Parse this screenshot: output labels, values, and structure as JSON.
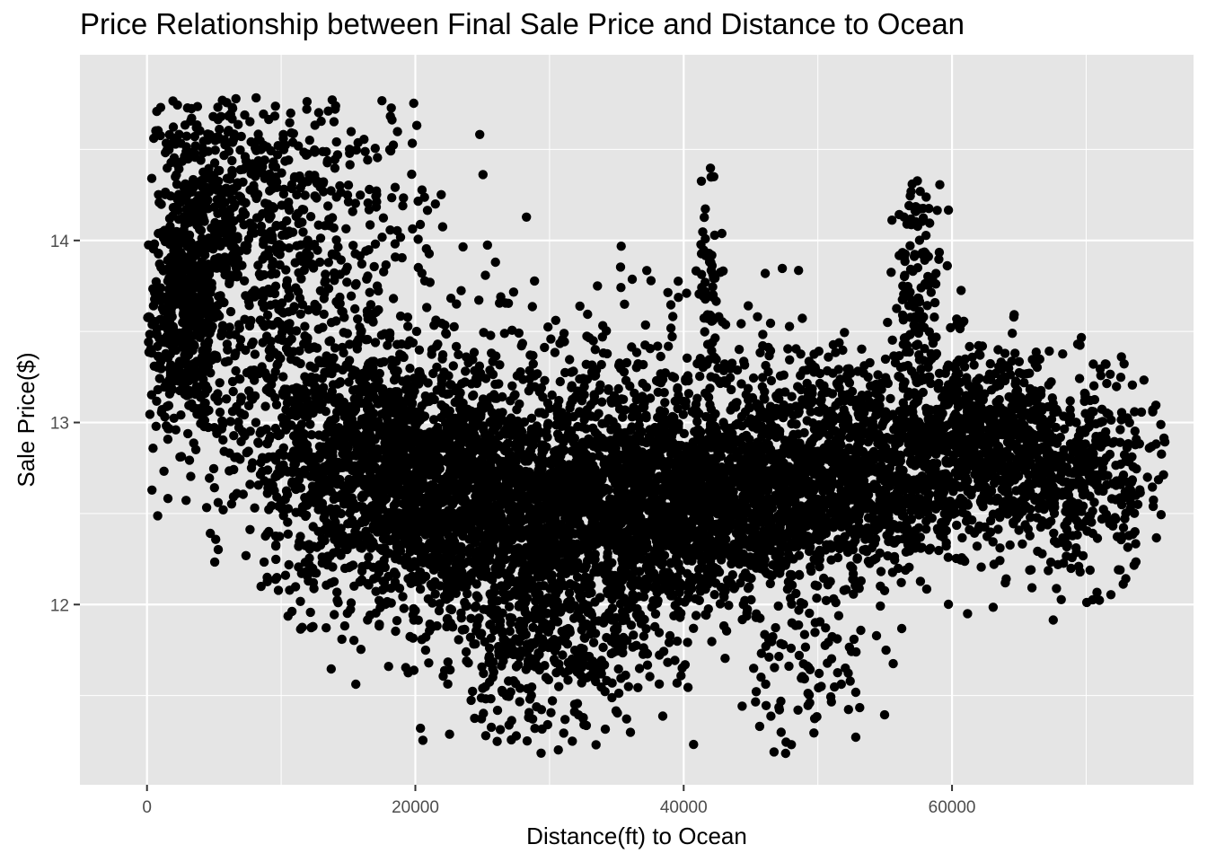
{
  "chart_data": {
    "type": "scatter",
    "title": "Price Relationship between Final Sale Price and Distance to Ocean",
    "xlabel": "Distance(ft) to Ocean",
    "ylabel": "Sale Price($)",
    "xlim": [
      -5000,
      78000
    ],
    "ylim": [
      11.01,
      15.02
    ],
    "x_ticks": [
      0,
      20000,
      40000,
      60000
    ],
    "x_tick_labels": [
      "0",
      "20000",
      "40000",
      "60000"
    ],
    "y_ticks": [
      12,
      13,
      14
    ],
    "y_tick_labels": [
      "12",
      "13",
      "14"
    ],
    "grid": true,
    "panel_color": "#e5e5e5",
    "grid_color": "#ffffff",
    "point_color": "#000000",
    "point_count_note_free": true,
    "clusters": [
      {
        "x": 3000,
        "y": 13.6,
        "sx": 1400,
        "sy": 0.3,
        "n": 500
      },
      {
        "x": 5000,
        "y": 14.2,
        "sx": 3200,
        "sy": 0.35,
        "n": 450
      },
      {
        "x": 13000,
        "y": 14.1,
        "sx": 4500,
        "sy": 0.4,
        "n": 300
      },
      {
        "x": 11000,
        "y": 13.1,
        "sx": 4000,
        "sy": 0.4,
        "n": 450
      },
      {
        "x": 19000,
        "y": 12.7,
        "sx": 5000,
        "sy": 0.35,
        "n": 1400
      },
      {
        "x": 29000,
        "y": 12.5,
        "sx": 6000,
        "sy": 0.35,
        "n": 1600
      },
      {
        "x": 30000,
        "y": 11.75,
        "sx": 4500,
        "sy": 0.25,
        "n": 350
      },
      {
        "x": 39000,
        "y": 12.55,
        "sx": 5000,
        "sy": 0.3,
        "n": 1100
      },
      {
        "x": 47000,
        "y": 12.65,
        "sx": 4500,
        "sy": 0.3,
        "n": 900
      },
      {
        "x": 54000,
        "y": 12.75,
        "sx": 4000,
        "sy": 0.3,
        "n": 700
      },
      {
        "x": 62000,
        "y": 12.9,
        "sx": 3200,
        "sy": 0.25,
        "n": 650
      },
      {
        "x": 69000,
        "y": 12.7,
        "sx": 3500,
        "sy": 0.28,
        "n": 500
      },
      {
        "x": 57500,
        "y": 13.75,
        "sx": 900,
        "sy": 0.3,
        "n": 120
      },
      {
        "x": 42000,
        "y": 13.8,
        "sx": 500,
        "sy": 0.3,
        "n": 60
      },
      {
        "x": 35000,
        "y": 13.3,
        "sx": 8000,
        "sy": 0.35,
        "n": 180
      },
      {
        "x": 49000,
        "y": 11.6,
        "sx": 3000,
        "sy": 0.2,
        "n": 80
      }
    ]
  }
}
